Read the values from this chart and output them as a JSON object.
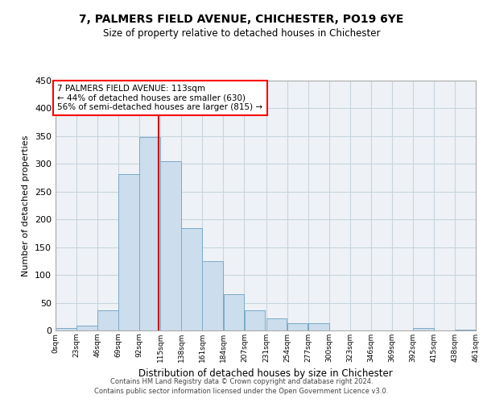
{
  "title": "7, PALMERS FIELD AVENUE, CHICHESTER, PO19 6YE",
  "subtitle": "Size of property relative to detached houses in Chichester",
  "xlabel": "Distribution of detached houses by size in Chichester",
  "ylabel": "Number of detached properties",
  "bar_color": "#ccdded",
  "bar_edge_color": "#7aaac8",
  "grid_color": "#c8d4de",
  "ref_line_color": "#cc0000",
  "ref_line_x": 113,
  "annotation_lines": [
    "7 PALMERS FIELD AVENUE: 113sqm",
    "← 44% of detached houses are smaller (630)",
    "56% of semi-detached houses are larger (815) →"
  ],
  "bin_edges": [
    0,
    23,
    46,
    69,
    92,
    115,
    138,
    161,
    184,
    207,
    231,
    254,
    277,
    300,
    323,
    346,
    369,
    392,
    415,
    438,
    461
  ],
  "bin_counts": [
    5,
    8,
    37,
    282,
    348,
    305,
    184,
    125,
    65,
    37,
    22,
    13,
    13,
    0,
    0,
    0,
    0,
    5,
    0,
    2
  ],
  "tick_labels": [
    "0sqm",
    "23sqm",
    "46sqm",
    "69sqm",
    "92sqm",
    "115sqm",
    "138sqm",
    "161sqm",
    "184sqm",
    "207sqm",
    "231sqm",
    "254sqm",
    "277sqm",
    "300sqm",
    "323sqm",
    "346sqm",
    "369sqm",
    "392sqm",
    "415sqm",
    "438sqm",
    "461sqm"
  ],
  "ylim": [
    0,
    450
  ],
  "xlim": [
    0,
    461
  ],
  "background_color": "#eef2f6",
  "footer_lines": [
    "Contains HM Land Registry data © Crown copyright and database right 2024.",
    "Contains public sector information licensed under the Open Government Licence v3.0."
  ]
}
